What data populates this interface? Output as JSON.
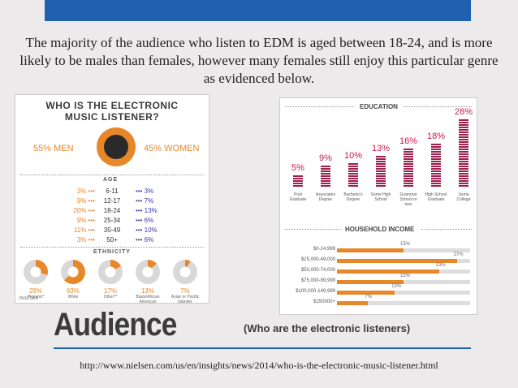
{
  "intro": {
    "line1": "The majority of the audience who listen to EDM is aged between 18-24, and is more",
    "line2": "likely to be males than females, however many females still enjoy this particular genre",
    "line3": "as evidenced below."
  },
  "left_infographic": {
    "title_line1": "WHO IS THE ELECTRONIC",
    "title_line2": "MUSIC LISTENER?",
    "men": "55% MEN",
    "women": "45% WOMEN",
    "age_title": "AGE",
    "age_rows": [
      {
        "men": "3%",
        "range": "6-11",
        "women": "3%"
      },
      {
        "men": "9%",
        "range": "12-17",
        "women": "7%"
      },
      {
        "men": "20%",
        "range": "18-24",
        "women": "13%"
      },
      {
        "men": "9%",
        "range": "25-34",
        "women": "6%"
      },
      {
        "men": "11%",
        "range": "35-49",
        "women": "10%"
      },
      {
        "men": "3%",
        "range": "50+",
        "women": "6%"
      }
    ],
    "ethnicity_title": "ETHNICITY",
    "ethnicity": [
      {
        "pct": "29%",
        "name": "Hispanic*",
        "value": 29
      },
      {
        "pct": "63%",
        "name": "White",
        "value": 63
      },
      {
        "pct": "17%",
        "name": "Other**",
        "value": 17
      },
      {
        "pct": "13%",
        "name": "Black/African American",
        "value": 13
      },
      {
        "pct": "7%",
        "name": "Asian or Pacific Islander",
        "value": 7
      }
    ],
    "source": "2NIELSEN"
  },
  "right_infographic": {
    "education_title": "EDUCATION",
    "education": [
      {
        "label": "5%",
        "value": 5,
        "cat": "Post Graduate"
      },
      {
        "label": "9%",
        "value": 9,
        "cat": "Associates Degree"
      },
      {
        "label": "10%",
        "value": 10,
        "cat": "Bachelor's Degree"
      },
      {
        "label": "13%",
        "value": 13,
        "cat": "Some High School"
      },
      {
        "label": "16%",
        "value": 16,
        "cat": "Grammar School or less"
      },
      {
        "label": "18%",
        "value": 18,
        "cat": "High School Graduate"
      },
      {
        "label": "28%",
        "value": 28,
        "cat": "Some College"
      }
    ],
    "income_title": "HOUSEHOLD INCOME",
    "income": [
      {
        "cat": "$0-24,999",
        "label": "15%",
        "value": 15
      },
      {
        "cat": "$25,000-49,000",
        "label": "27%",
        "value": 27
      },
      {
        "cat": "$50,000-74,000",
        "label": "23%",
        "value": 23
      },
      {
        "cat": "$75,000-99,999",
        "label": "15%",
        "value": 15
      },
      {
        "cat": "$100,000-149,999",
        "label": "13%",
        "value": 13
      },
      {
        "cat": "$150000+",
        "label": "7%",
        "value": 7
      }
    ]
  },
  "audience_title": "Audience",
  "audience_subtitle": "(Who are the electronic listeners)",
  "url": "http://www.nielsen.com/us/en/insights/news/2014/who-is-the-electronic-music-listener.html",
  "colors": {
    "accent": "#2060b0",
    "orange": "#e8872a",
    "magenta": "#9c1f4d"
  }
}
